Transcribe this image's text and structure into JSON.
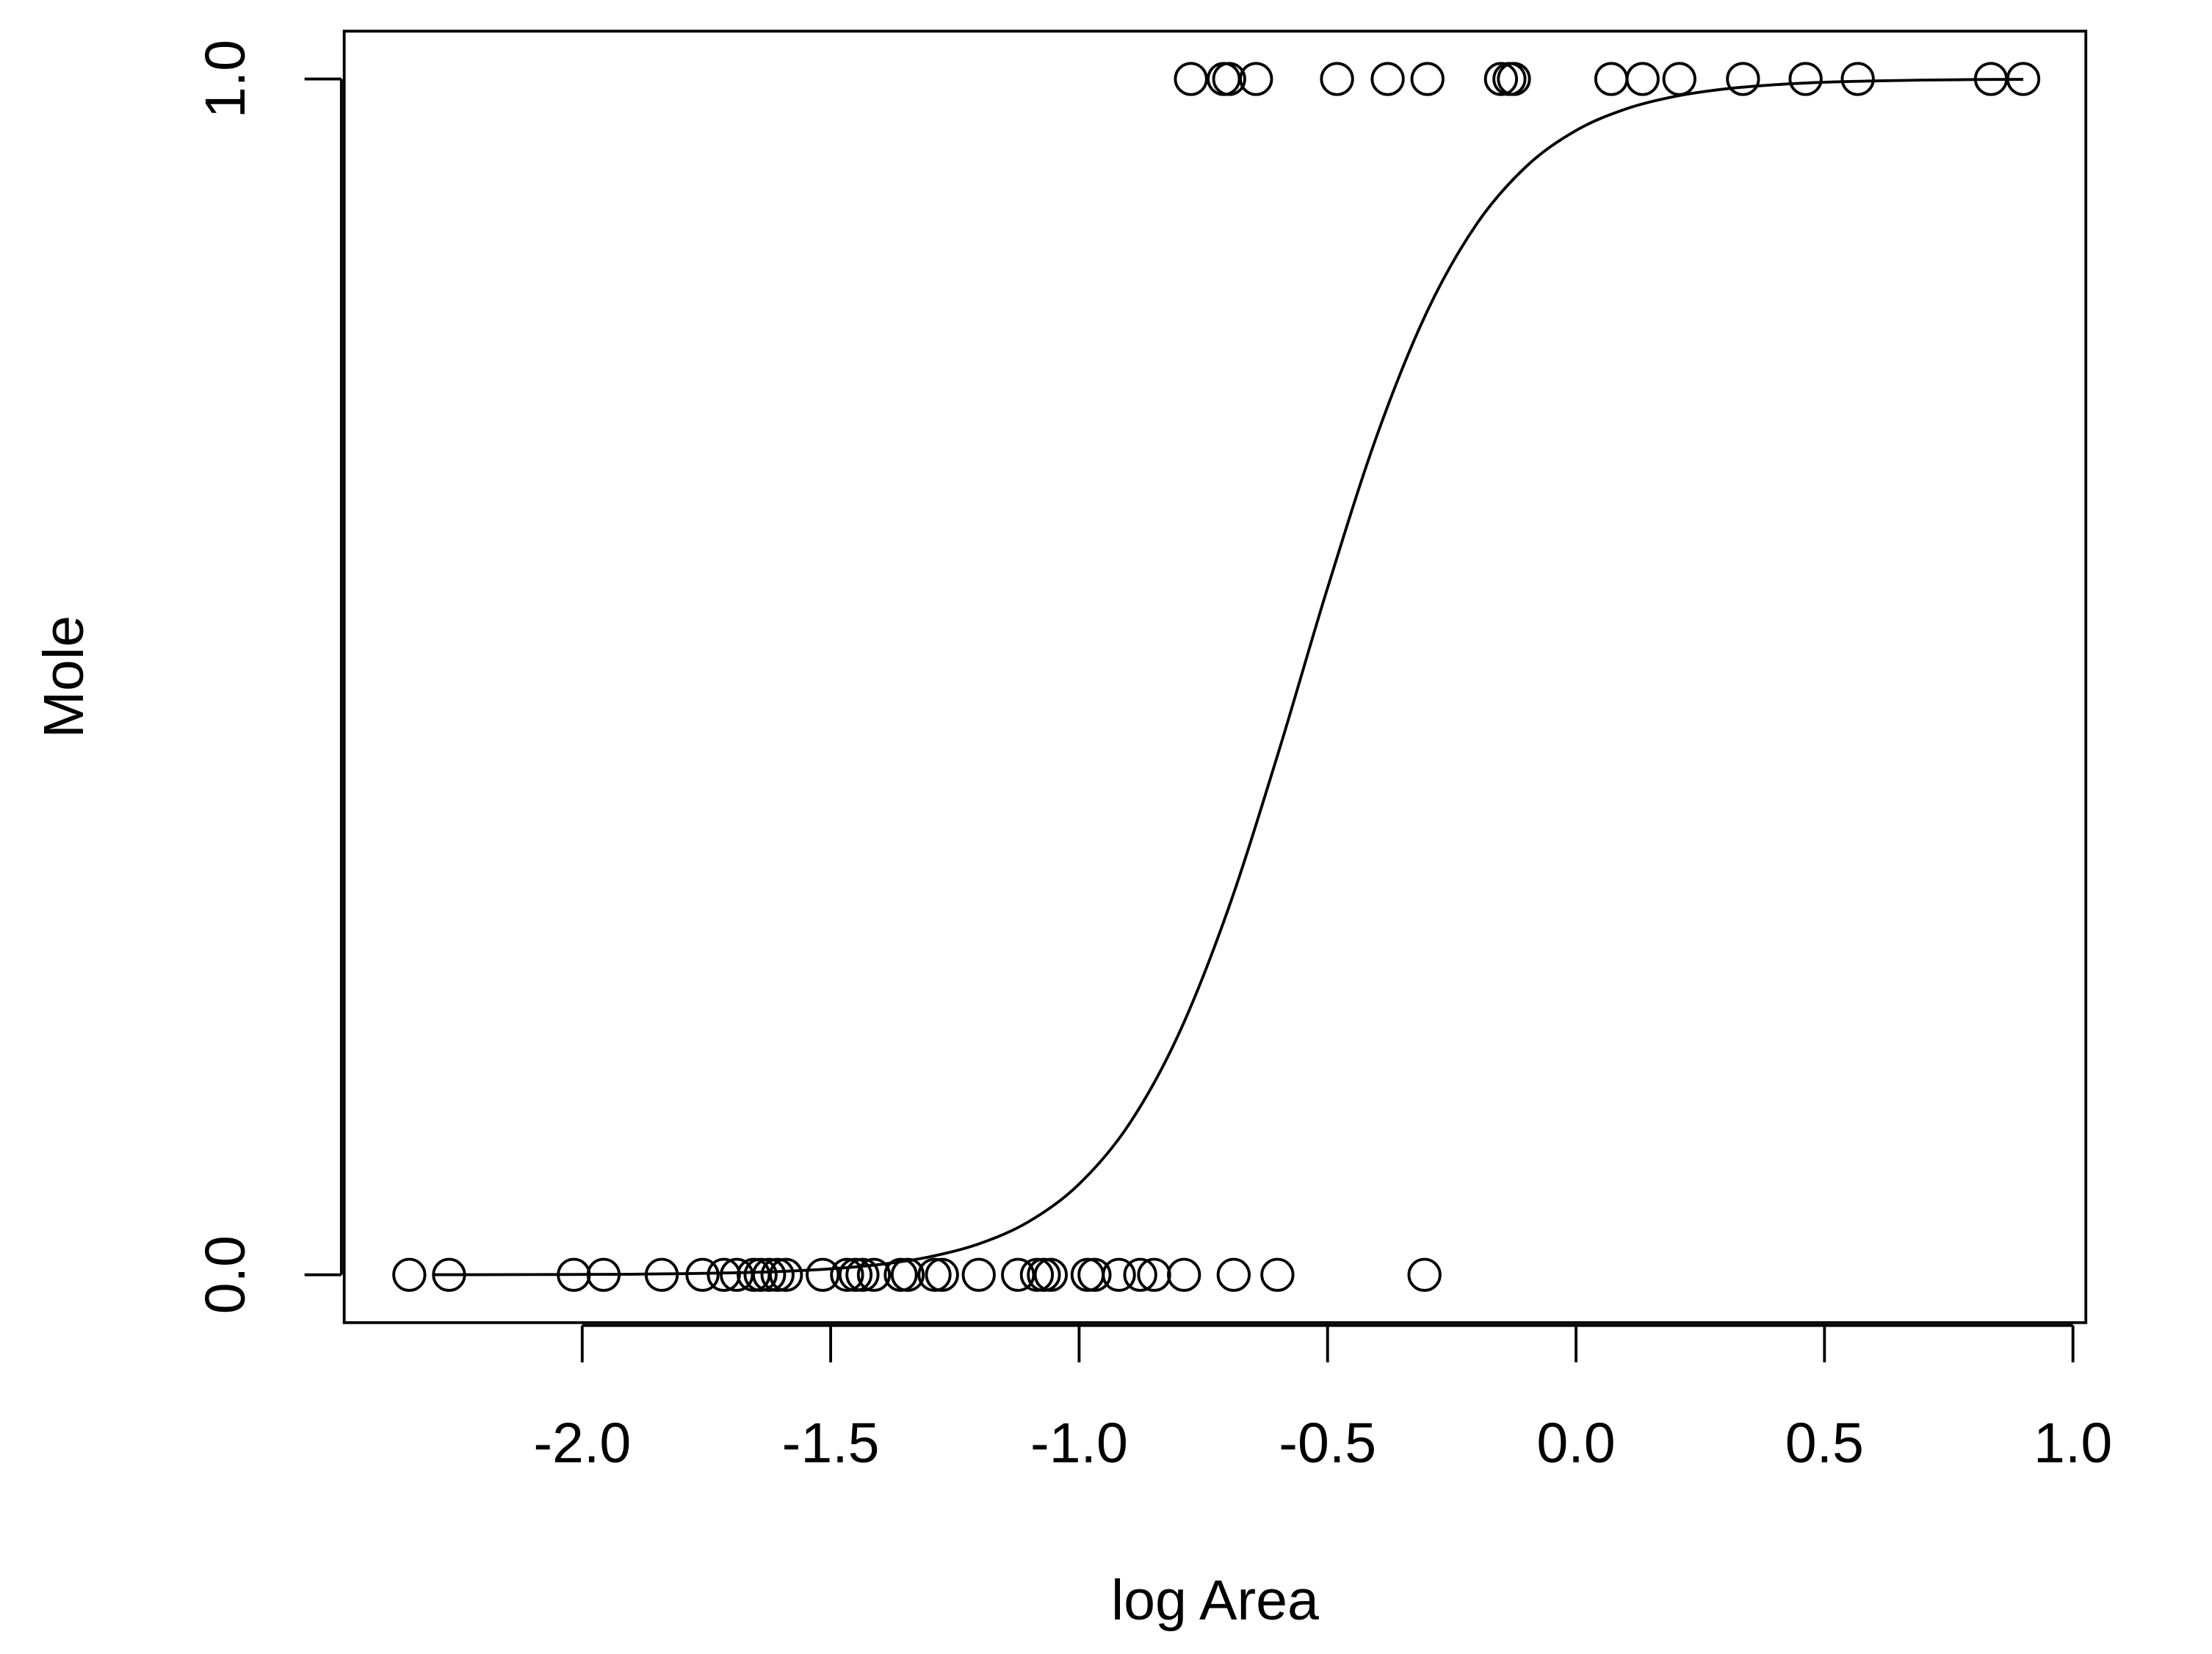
{
  "chart_data": {
    "type": "scatter",
    "xlabel": "log Area",
    "ylabel": "Mole",
    "xlim": [
      -2.479,
      1.026
    ],
    "ylim": [
      -0.04,
      1.04
    ],
    "xticks": [
      {
        "value": -2,
        "label": "-2.0"
      },
      -1.5,
      {
        "value": -1,
        "label": "-1.0"
      },
      -0.5,
      {
        "value": 0,
        "label": "0.0"
      },
      0.5,
      {
        "value": 1,
        "label": "1.0"
      }
    ],
    "yticks": [
      {
        "value": 0,
        "label": "0.0"
      },
      {
        "value": 1,
        "label": "1.0"
      }
    ],
    "color": "#000000",
    "series": [
      {
        "type": "scatter",
        "x": [
          -0.775,
          -0.709,
          -0.698,
          -0.644,
          -0.481,
          -0.379,
          -0.299,
          -0.151,
          -0.134,
          -0.125,
          0.071,
          0.134,
          0.208,
          0.336,
          0.462,
          0.567,
          0.835,
          0.9,
          -2.348,
          -2.268,
          -2.017,
          -1.957,
          -1.84,
          -1.758,
          -1.715,
          -1.689,
          -1.655,
          -1.641,
          -1.624,
          -1.607,
          -1.59,
          -1.516,
          -1.467,
          -1.45,
          -1.436,
          -1.413,
          -1.359,
          -1.345,
          -1.291,
          -1.276,
          -1.202,
          -1.123,
          -1.085,
          -1.071,
          -1.057,
          -0.983,
          -0.969,
          -0.92,
          -0.877,
          -0.849,
          -0.789,
          -0.689,
          -0.601,
          -0.305
        ],
        "values": [
          1,
          1,
          1,
          1,
          1,
          1,
          1,
          1,
          1,
          1,
          1,
          1,
          1,
          1,
          1,
          1,
          1,
          1,
          0,
          0,
          0,
          0,
          0,
          0,
          0,
          0,
          0,
          0,
          0,
          0,
          0,
          0,
          0,
          0,
          0,
          0,
          0,
          0,
          0,
          0,
          0,
          0,
          0,
          0,
          0,
          0,
          0,
          0,
          0,
          0,
          0,
          0,
          0,
          0
        ]
      },
      {
        "type": "line",
        "x": [
          -2.3,
          -2.2,
          -2.1,
          -2.0,
          -1.9,
          -1.8,
          -1.7,
          -1.6,
          -1.5,
          -1.4,
          -1.3,
          -1.2,
          -1.1,
          -1.0,
          -0.9,
          -0.8,
          -0.7,
          -0.6,
          -0.5,
          -0.4,
          -0.3,
          -0.2,
          -0.1,
          0.0,
          0.1,
          0.2,
          0.3,
          0.4,
          0.5,
          0.6,
          0.7,
          0.8,
          0.9
        ],
        "values": [
          0.0001,
          0.0001,
          0.0002,
          0.0003,
          0.0005,
          0.0009,
          0.0016,
          0.0028,
          0.005,
          0.0087,
          0.0151,
          0.0261,
          0.0448,
          0.0759,
          0.1256,
          0.201,
          0.3058,
          0.4354,
          0.5744,
          0.7027,
          0.8053,
          0.8787,
          0.9269,
          0.9569,
          0.9749,
          0.9855,
          0.9917,
          0.9952,
          0.9973,
          0.9984,
          0.9991,
          0.9995,
          0.9997
        ]
      }
    ]
  }
}
